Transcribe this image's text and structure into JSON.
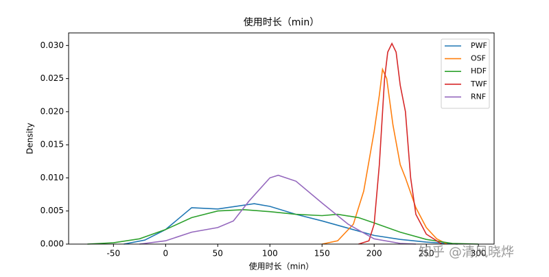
{
  "chart_data": {
    "type": "line",
    "title": "使用时长（min）",
    "xlabel": "使用时长（min）",
    "ylabel": "Density",
    "xlim": [
      -93,
      315
    ],
    "ylim": [
      0,
      0.0319
    ],
    "xticks": [
      -50,
      0,
      50,
      100,
      150,
      200,
      250,
      300
    ],
    "yticks": [
      {
        "value": 0,
        "label": "0.000"
      },
      {
        "value": 0.005,
        "label": "0.005"
      },
      {
        "value": 0.01,
        "label": "0.010"
      },
      {
        "value": 0.015,
        "label": "0.015"
      },
      {
        "value": 0.02,
        "label": "0.020"
      },
      {
        "value": 0.025,
        "label": "0.025"
      },
      {
        "value": 0.03,
        "label": "0.030"
      }
    ],
    "legend": "upper right",
    "series": [
      {
        "name": "PWF",
        "color": "#1f77b4",
        "x": [
          -40,
          -20,
          0,
          25,
          50,
          85,
          100,
          125,
          150,
          175,
          200,
          225,
          250,
          280
        ],
        "values": [
          0,
          0.0006,
          0.0022,
          0.0055,
          0.0053,
          0.0061,
          0.0057,
          0.0045,
          0.0035,
          0.0024,
          0.0013,
          0.0007,
          0.0003,
          0
        ]
      },
      {
        "name": "OSF",
        "color": "#ff7f0e",
        "x": [
          150,
          165,
          180,
          190,
          200,
          205,
          208,
          212,
          218,
          225,
          230,
          240,
          250,
          260,
          270
        ],
        "values": [
          0,
          0.0005,
          0.003,
          0.008,
          0.017,
          0.0225,
          0.0264,
          0.025,
          0.018,
          0.012,
          0.01,
          0.0055,
          0.0025,
          0.0008,
          0
        ]
      },
      {
        "name": "HDF",
        "color": "#2ca02c",
        "x": [
          -75,
          -50,
          -25,
          0,
          25,
          50,
          75,
          100,
          125,
          150,
          165,
          185,
          200,
          225,
          250,
          275,
          300
        ],
        "values": [
          0,
          0.0002,
          0.0008,
          0.0022,
          0.004,
          0.005,
          0.0052,
          0.0049,
          0.0045,
          0.0043,
          0.0045,
          0.004,
          0.0032,
          0.0018,
          0.0007,
          0.0001,
          0
        ]
      },
      {
        "name": "TWF",
        "color": "#d62728",
        "x": [
          185,
          195,
          200,
          205,
          210,
          213,
          217,
          221,
          225,
          230,
          235,
          240,
          250,
          265
        ],
        "values": [
          0,
          0.0005,
          0.003,
          0.012,
          0.025,
          0.029,
          0.0303,
          0.029,
          0.024,
          0.02,
          0.01,
          0.0045,
          0.0015,
          0
        ]
      },
      {
        "name": "RNF",
        "color": "#9467bd",
        "x": [
          -25,
          0,
          25,
          50,
          65,
          80,
          100,
          108,
          125,
          150,
          175,
          200,
          225,
          240
        ],
        "values": [
          0,
          0.0005,
          0.0018,
          0.0025,
          0.0035,
          0.0065,
          0.01,
          0.0104,
          0.0095,
          0.0062,
          0.003,
          0.0008,
          0.0001,
          0
        ]
      }
    ]
  },
  "watermark": "知乎 @清风晓烨"
}
